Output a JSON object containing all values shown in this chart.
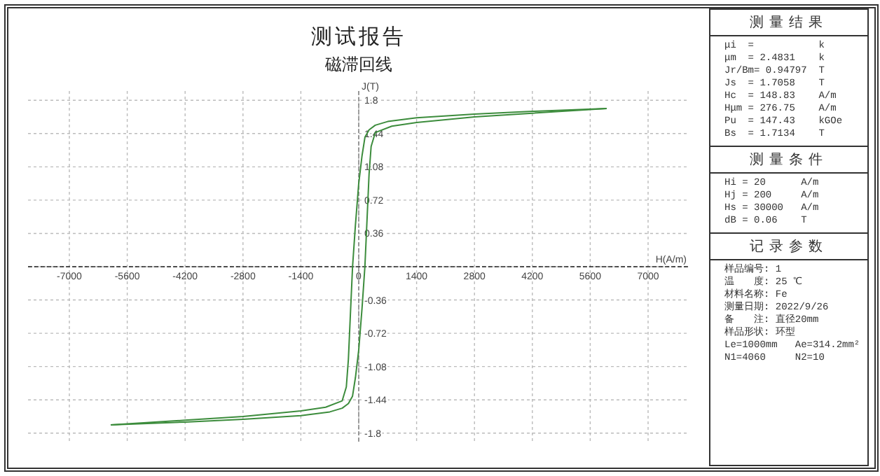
{
  "chart_data": [
    {
      "type": "line",
      "title": "测试报告",
      "subtitle": "磁滞回线",
      "xlabel": "H(A/m)",
      "ylabel": "J(T)",
      "series": [
        {
          "color": "#3c8c3c",
          "x": [
            6000,
            4200,
            2800,
            1400,
            700,
            400,
            250,
            150,
            80,
            0,
            -80,
            -149,
            -200,
            -250,
            -300,
            -400,
            -800,
            -1400,
            -2800,
            -4200,
            -6000
          ],
          "values": [
            1.71,
            1.68,
            1.65,
            1.61,
            1.57,
            1.53,
            1.48,
            1.4,
            1.2,
            0.9,
            0.45,
            0,
            -0.5,
            -1.0,
            -1.3,
            -1.45,
            -1.52,
            -1.56,
            -1.62,
            -1.66,
            -1.71
          ]
        },
        {
          "color": "#3c8c3c",
          "x": [
            -6000,
            -4200,
            -2800,
            -1400,
            -700,
            -400,
            -250,
            -150,
            -80,
            0,
            80,
            149,
            200,
            250,
            300,
            400,
            800,
            1400,
            2800,
            4200,
            6000
          ],
          "values": [
            -1.71,
            -1.68,
            -1.65,
            -1.61,
            -1.57,
            -1.53,
            -1.48,
            -1.4,
            -1.2,
            -0.9,
            -0.45,
            0,
            0.5,
            1.0,
            1.3,
            1.45,
            1.52,
            1.56,
            1.62,
            1.66,
            1.71
          ]
        }
      ],
      "xlim": [
        -8000,
        8000
      ],
      "ylim": [
        -1.9,
        1.9
      ],
      "xticks": [
        -7000,
        -5600,
        -4200,
        -2800,
        -1400,
        0,
        1400,
        2800,
        4200,
        5600,
        7000
      ],
      "yticks": [
        -1.8,
        -1.44,
        -1.08,
        -0.72,
        -0.36,
        {
          "value": 0,
          "label": null
        },
        0.36,
        0.72,
        1.08,
        1.44,
        1.8
      ],
      "grid": true,
      "line_style": "solid",
      "marker": "none",
      "ref_lines": [
        {
          "axis": "y",
          "value": 0,
          "color": "#222222",
          "line_style": "dashed"
        },
        {
          "axis": "x",
          "value": 0,
          "color": "#888888",
          "line_style": "dashed"
        }
      ]
    },
    {
      "type": "other",
      "title": "测量结果",
      "annotations": [
        "μi  =           k",
        "μm  = 2.4831    k",
        "Jr/Bm= 0.94797  T",
        "Js  = 1.7058    T",
        "Hc  = 148.83    A/m",
        "Hμm = 276.75    A/m",
        "Pu  = 147.43    kGOe",
        "Bs  = 1.7134    T"
      ]
    },
    {
      "type": "other",
      "title": "测量条件",
      "annotations": [
        "Hi = 20      A/m",
        "Hj = 200     A/m",
        "Hs = 30000   A/m",
        "dB = 0.06    T"
      ]
    },
    {
      "type": "other",
      "title": "记录参数",
      "annotations": [
        "样品编号: 1",
        "温　　度: 25 ℃",
        "材料名称: Fe",
        "测量日期: 2022/9/26",
        "备　　注: 直径20mm",
        "样品形状: 环型",
        "Le=1000mm   Ae=314.2mm²",
        "N1=4060     N2=10"
      ]
    }
  ]
}
